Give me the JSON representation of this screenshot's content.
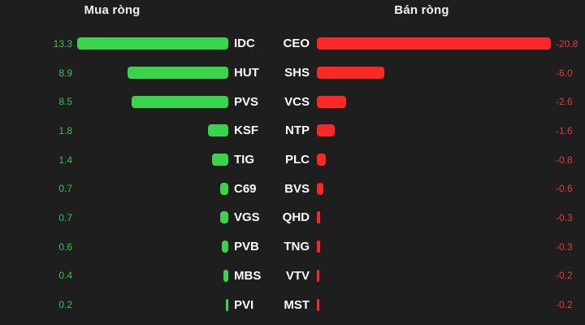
{
  "page": {
    "background": "#1e1e1e",
    "text_color": "#fafafa"
  },
  "chart_data": {
    "type": "bar",
    "orientation": "horizontal",
    "grid": false,
    "legend": null,
    "panels": [
      {
        "title": "Mua ròng",
        "side": "left",
        "bar_color": "#3ad34c",
        "value_color": "#3cc24e",
        "axis_max": 13.3,
        "axis_range": [
          0,
          13.3
        ],
        "categories": [
          "IDC",
          "HUT",
          "PVS",
          "KSF",
          "TIG",
          "C69",
          "VGS",
          "PVB",
          "MBS",
          "PVI"
        ],
        "values": [
          13.3,
          8.9,
          8.5,
          1.8,
          1.4,
          0.7,
          0.7,
          0.6,
          0.4,
          0.2
        ],
        "value_labels": [
          "13.3",
          "8.9",
          "8.5",
          "1.8",
          "1.4",
          "0.7",
          "0.7",
          "0.6",
          "0.4",
          "0.2"
        ]
      },
      {
        "title": "Bán ròng",
        "side": "right",
        "bar_color": "#fc2828",
        "value_color": "#e23c3c",
        "axis_max": 20.8,
        "axis_range": [
          0,
          -20.8
        ],
        "categories": [
          "CEO",
          "SHS",
          "VCS",
          "NTP",
          "PLC",
          "BVS",
          "QHD",
          "TNG",
          "VTV",
          "MST"
        ],
        "values": [
          -20.8,
          -6.0,
          -2.6,
          -1.6,
          -0.8,
          -0.6,
          -0.3,
          -0.3,
          -0.2,
          -0.2
        ],
        "value_labels": [
          "-20.8",
          "-6.0",
          "-2.6",
          "-1.6",
          "-0.8",
          "-0.6",
          "-0.3",
          "-0.3",
          "-0.2",
          "-0.2"
        ]
      }
    ]
  }
}
